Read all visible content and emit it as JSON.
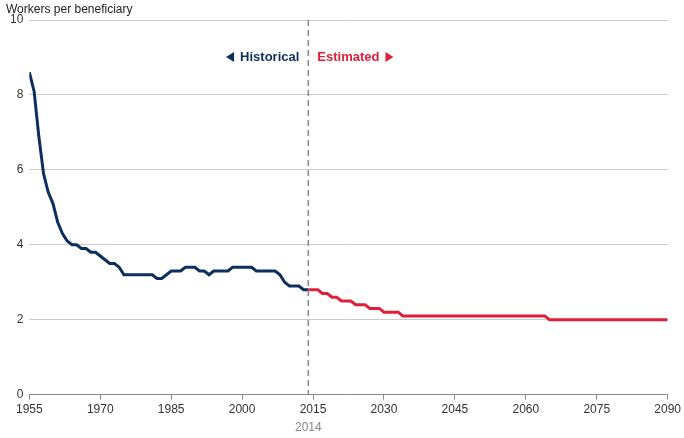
{
  "chart_data": {
    "type": "line",
    "y_label": "Workers per beneficiary",
    "x": [
      1955,
      1956,
      1957,
      1958,
      1959,
      1960,
      1961,
      1962,
      1963,
      1964,
      1965,
      1966,
      1967,
      1968,
      1969,
      1970,
      1971,
      1972,
      1973,
      1974,
      1975,
      1976,
      1977,
      1978,
      1979,
      1980,
      1981,
      1982,
      1983,
      1984,
      1985,
      1986,
      1987,
      1988,
      1989,
      1990,
      1991,
      1992,
      1993,
      1994,
      1995,
      1996,
      1997,
      1998,
      1999,
      2000,
      2001,
      2002,
      2003,
      2004,
      2005,
      2006,
      2007,
      2008,
      2009,
      2010,
      2011,
      2012,
      2013,
      2014,
      2015,
      2016,
      2017,
      2018,
      2019,
      2020,
      2021,
      2022,
      2023,
      2024,
      2025,
      2026,
      2027,
      2028,
      2029,
      2030,
      2031,
      2032,
      2033,
      2034,
      2035,
      2036,
      2037,
      2038,
      2039,
      2040,
      2041,
      2042,
      2043,
      2044,
      2045,
      2046,
      2047,
      2048,
      2049,
      2050,
      2051,
      2052,
      2053,
      2054,
      2055,
      2056,
      2057,
      2058,
      2059,
      2060,
      2061,
      2062,
      2063,
      2064,
      2065,
      2066,
      2067,
      2068,
      2069,
      2070,
      2071,
      2072,
      2073,
      2074,
      2075,
      2076,
      2077,
      2078,
      2079,
      2080,
      2081,
      2082,
      2083,
      2084,
      2085,
      2086,
      2087,
      2088,
      2089,
      2090
    ],
    "series": [
      {
        "name": "Historical",
        "color": "#0d2f5f",
        "values": [
          8.6,
          8.1,
          6.9,
          5.9,
          5.4,
          5.1,
          4.6,
          4.3,
          4.1,
          4.0,
          4.0,
          3.9,
          3.9,
          3.8,
          3.8,
          3.7,
          3.6,
          3.5,
          3.5,
          3.4,
          3.2,
          3.2,
          3.2,
          3.2,
          3.2,
          3.2,
          3.2,
          3.1,
          3.1,
          3.2,
          3.3,
          3.3,
          3.3,
          3.4,
          3.4,
          3.4,
          3.3,
          3.3,
          3.2,
          3.3,
          3.3,
          3.3,
          3.3,
          3.4,
          3.4,
          3.4,
          3.4,
          3.4,
          3.3,
          3.3,
          3.3,
          3.3,
          3.3,
          3.2,
          3.0,
          2.9,
          2.9,
          2.9,
          2.8,
          2.8,
          null,
          null,
          null,
          null,
          null,
          null,
          null,
          null,
          null,
          null,
          null,
          null,
          null,
          null,
          null,
          null,
          null,
          null,
          null,
          null,
          null,
          null,
          null,
          null,
          null,
          null,
          null,
          null,
          null,
          null,
          null,
          null,
          null,
          null,
          null,
          null,
          null,
          null,
          null,
          null,
          null,
          null,
          null,
          null,
          null,
          null,
          null,
          null,
          null,
          null,
          null,
          null,
          null,
          null,
          null,
          null,
          null,
          null,
          null,
          null,
          null,
          null,
          null,
          null,
          null,
          null,
          null,
          null,
          null,
          null,
          null,
          null,
          null,
          null,
          null,
          null
        ]
      },
      {
        "name": "Estimated",
        "color": "#e0203a",
        "values": [
          null,
          null,
          null,
          null,
          null,
          null,
          null,
          null,
          null,
          null,
          null,
          null,
          null,
          null,
          null,
          null,
          null,
          null,
          null,
          null,
          null,
          null,
          null,
          null,
          null,
          null,
          null,
          null,
          null,
          null,
          null,
          null,
          null,
          null,
          null,
          null,
          null,
          null,
          null,
          null,
          null,
          null,
          null,
          null,
          null,
          null,
          null,
          null,
          null,
          null,
          null,
          null,
          null,
          null,
          null,
          null,
          null,
          null,
          null,
          2.8,
          2.8,
          2.8,
          2.7,
          2.7,
          2.6,
          2.6,
          2.5,
          2.5,
          2.5,
          2.4,
          2.4,
          2.4,
          2.3,
          2.3,
          2.3,
          2.2,
          2.2,
          2.2,
          2.2,
          2.1,
          2.1,
          2.1,
          2.1,
          2.1,
          2.1,
          2.1,
          2.1,
          2.1,
          2.1,
          2.1,
          2.1,
          2.1,
          2.1,
          2.1,
          2.1,
          2.1,
          2.1,
          2.1,
          2.1,
          2.1,
          2.1,
          2.1,
          2.1,
          2.1,
          2.1,
          2.1,
          2.1,
          2.1,
          2.1,
          2.1,
          2.0,
          2.0,
          2.0,
          2.0,
          2.0,
          2.0,
          2.0,
          2.0,
          2.0,
          2.0,
          2.0,
          2.0,
          2.0,
          2.0,
          2.0,
          2.0,
          2.0,
          2.0,
          2.0,
          2.0,
          2.0,
          2.0,
          2.0,
          2.0,
          2.0,
          2.0
        ]
      }
    ],
    "annotations": [
      {
        "x": 2014,
        "text": "2014"
      }
    ],
    "xlim": [
      1955,
      2090
    ],
    "xticks": [
      1955,
      1970,
      1985,
      2000,
      2015,
      2030,
      2045,
      2060,
      2075,
      2090
    ],
    "ylim": [
      0,
      10
    ],
    "yticks": [
      0,
      2,
      4,
      6,
      8,
      10
    ],
    "grid": true,
    "legend": false
  }
}
